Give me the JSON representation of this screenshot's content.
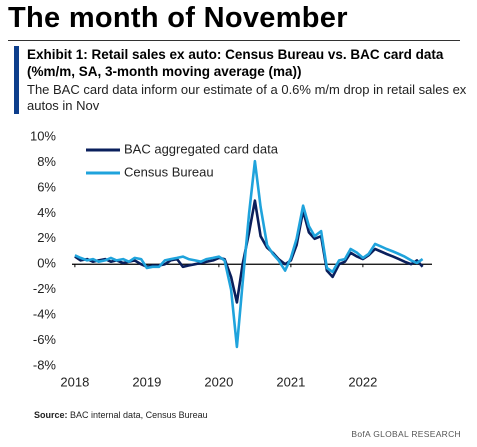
{
  "header": {
    "title": "The month of November"
  },
  "chart_data": {
    "type": "line",
    "title": "Exhibit 1: Retail sales ex auto: Census Bureau vs. BAC card data (%m/m, SA, 3-month moving average (ma))",
    "subtitle": "The BAC card data inform our estimate of a 0.6% m/m drop in retail sales ex autos in Nov",
    "x": [
      2018,
      2018.08,
      2018.17,
      2018.25,
      2018.33,
      2018.42,
      2018.5,
      2018.58,
      2018.67,
      2018.75,
      2018.83,
      2018.92,
      2019,
      2019.08,
      2019.17,
      2019.25,
      2019.33,
      2019.42,
      2019.5,
      2019.58,
      2019.67,
      2019.75,
      2019.83,
      2019.92,
      2020,
      2020.08,
      2020.17,
      2020.25,
      2020.33,
      2020.42,
      2020.5,
      2020.58,
      2020.67,
      2020.75,
      2020.83,
      2020.92,
      2021,
      2021.08,
      2021.17,
      2021.25,
      2021.33,
      2021.42,
      2021.5,
      2021.58,
      2021.67,
      2021.75,
      2021.83,
      2021.92,
      2022,
      2022.08,
      2022.17,
      2022.25,
      2022.33,
      2022.42,
      2022.5,
      2022.58,
      2022.67,
      2022.75,
      2022.83
    ],
    "series": [
      {
        "name": "BAC aggregated card data",
        "color": "#0a1f5c",
        "values": [
          0.6,
          0.3,
          0.4,
          0.2,
          0.3,
          0.4,
          0.2,
          0.3,
          0.1,
          0.2,
          0.3,
          0.0,
          -0.2,
          -0.1,
          -0.1,
          0.0,
          0.3,
          0.4,
          -0.2,
          -0.1,
          0.0,
          0.1,
          0.2,
          0.3,
          0.5,
          0.4,
          -1.0,
          -3.0,
          0.0,
          2.5,
          5.0,
          2.2,
          1.3,
          0.9,
          0.4,
          0.0,
          0.3,
          1.5,
          4.2,
          2.5,
          2.0,
          2.2,
          -0.5,
          -1.0,
          0.0,
          0.2,
          0.9,
          0.6,
          0.4,
          0.7,
          1.2,
          1.0,
          0.8,
          0.6,
          0.4,
          0.2,
          0.0,
          0.3,
          -0.2
        ]
      },
      {
        "name": "Census Bureau",
        "color": "#1fa3dc",
        "values": [
          0.7,
          0.5,
          0.3,
          0.4,
          0.2,
          0.3,
          0.5,
          0.3,
          0.4,
          0.2,
          0.5,
          0.4,
          -0.3,
          -0.2,
          -0.2,
          0.3,
          0.4,
          0.5,
          0.6,
          0.4,
          0.3,
          0.2,
          0.4,
          0.5,
          0.6,
          0.3,
          -2.0,
          -6.5,
          -1.5,
          4.0,
          8.1,
          4.5,
          1.5,
          0.8,
          0.3,
          -0.5,
          0.5,
          2.0,
          4.6,
          3.0,
          2.2,
          2.6,
          -0.3,
          -0.6,
          0.3,
          0.4,
          1.2,
          0.9,
          0.5,
          0.8,
          1.6,
          1.4,
          1.2,
          1.0,
          0.8,
          0.6,
          0.3,
          0.1,
          0.4
        ]
      }
    ],
    "xlim": [
      2017.96,
      2022.96
    ],
    "xticks": [
      2018,
      2019,
      2020,
      2021,
      2022
    ],
    "ylim": [
      -8,
      10
    ],
    "yticks": [
      {
        "value": -8,
        "label": "-8%"
      },
      {
        "value": -6,
        "label": "-6%"
      },
      {
        "value": -4,
        "label": "-4%"
      },
      {
        "value": -2,
        "label": "-2%"
      },
      {
        "value": 0,
        "label": "0%"
      },
      {
        "value": 2,
        "label": "2%"
      },
      {
        "value": 4,
        "label": "4%"
      },
      {
        "value": 6,
        "label": "6%"
      },
      {
        "value": 8,
        "label": "8%"
      },
      {
        "value": 10,
        "label": "10%"
      }
    ],
    "legend": "upper left",
    "source_label": "Source:",
    "source": "BAC internal data, Census Bureau",
    "brand": "BofA GLOBAL RESEARCH"
  }
}
